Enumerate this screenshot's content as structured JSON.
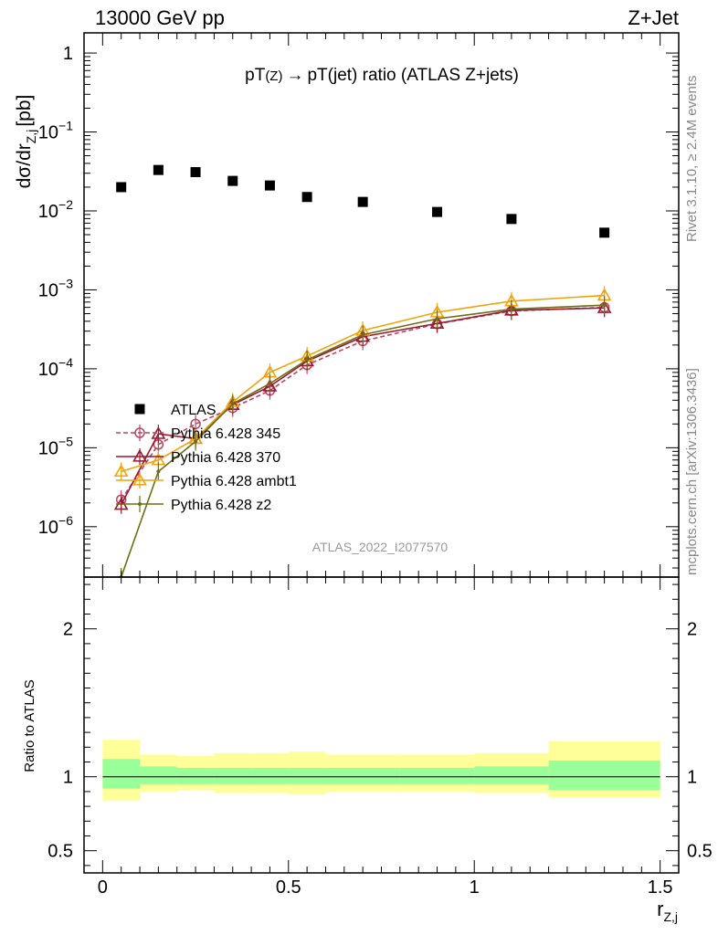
{
  "header": {
    "energy": "13000 GeV pp",
    "process": "Z+Jet"
  },
  "side_labels": {
    "rivet": "Rivet 3.1.10, ≥ 2.4M events",
    "mcplots": "mcplots.cern.ch [arXiv:1306.3436]"
  },
  "analysis_id": "ATLAS_2022_I2077570",
  "colors": {
    "data": "#000000",
    "p345": "#b5475f",
    "p370": "#9b1730",
    "ambt1": "#f0a30a",
    "z2": "#6e6e14",
    "band_inner": "#99ff99",
    "band_outer": "#ffff99"
  },
  "chart_data": [
    {
      "type": "scatter",
      "panel": "main",
      "title_main": "pT",
      "title_sub1": "(Z)",
      "title_arrow": "→",
      "title_rest": "pT(jet) ratio (ATLAS Z+jets)",
      "ylabel_main": "dσ/dr",
      "ylabel_sub": "Z,j",
      "ylabel_unit": "[pb]",
      "yscale": "log",
      "ylim": [
        2.3e-07,
        1.8
      ],
      "xlim": [
        -0.05,
        1.55
      ],
      "ytick_labels": [
        {
          "base": "10",
          "exp": "−6",
          "value": 1e-06
        },
        {
          "base": "10",
          "exp": "−5",
          "value": 1e-05
        },
        {
          "base": "10",
          "exp": "−4",
          "value": 0.0001
        },
        {
          "base": "10",
          "exp": "−3",
          "value": 0.001
        },
        {
          "base": "10",
          "exp": "−2",
          "value": 0.01
        },
        {
          "base": "10",
          "exp": "−1",
          "value": 0.1
        },
        {
          "base": "1",
          "exp": "",
          "value": 1
        }
      ],
      "legend_placement": "lower-left",
      "series": [
        {
          "name": "ATLAS",
          "key": "data",
          "marker": "filled-square",
          "x": [
            0.05,
            0.15,
            0.25,
            0.35,
            0.45,
            0.55,
            0.7,
            0.9,
            1.1,
            1.35
          ],
          "y": [
            0.02,
            0.033,
            0.031,
            0.024,
            0.021,
            0.015,
            0.013,
            0.0097,
            0.0079,
            0.0053
          ]
        },
        {
          "name": "Pythia 6.428 345",
          "key": "p345",
          "marker": "open-circle",
          "dashed": true,
          "x": [
            0.05,
            0.15,
            0.25,
            0.35,
            0.45,
            0.55,
            0.7,
            0.9,
            1.1,
            1.35
          ],
          "y": [
            2.2e-06,
            1.1e-05,
            2e-05,
            3.2e-05,
            5.3e-05,
            0.000112,
            0.000225,
            0.00037,
            0.00054,
            0.0006
          ]
        },
        {
          "name": "Pythia 6.428 370",
          "key": "p370",
          "marker": "open-triangle",
          "x": [
            0.05,
            0.15,
            0.25,
            0.35,
            0.45,
            0.55,
            0.7,
            0.9,
            1.1,
            1.35
          ],
          "y": [
            1.9e-06,
            1.5e-05,
            1.3e-05,
            3.5e-05,
            6e-05,
            0.000125,
            0.000255,
            0.000375,
            0.00055,
            0.00059
          ]
        },
        {
          "name": "Pythia 6.428 ambt1",
          "key": "ambt1",
          "marker": "open-triangle",
          "x": [
            0.05,
            0.15,
            0.25,
            0.35,
            0.45,
            0.55,
            0.7,
            0.9,
            1.1,
            1.35
          ],
          "y": [
            5e-06,
            7e-06,
            1.3e-05,
            3.8e-05,
            9e-05,
            0.000145,
            0.000305,
            0.00052,
            0.00072,
            0.00085
          ]
        },
        {
          "name": "Pythia 6.428 z2",
          "key": "z2",
          "marker": "dot",
          "x": [
            0.05,
            0.15,
            0.25,
            0.35,
            0.45,
            0.55,
            0.7,
            0.9,
            1.1,
            1.35
          ],
          "y": [
            2.3e-07,
            5e-06,
            1.2e-05,
            3.6e-05,
            6.5e-05,
            0.00013,
            0.00027,
            0.00043,
            0.00057,
            0.00064
          ]
        }
      ]
    },
    {
      "type": "area",
      "panel": "ratio",
      "ylabel": "Ratio to ATLAS",
      "xlabel_main": "r",
      "xlabel_sub": "Z,j",
      "ylim": [
        0.35,
        2.35
      ],
      "xlim": [
        -0.05,
        1.55
      ],
      "ytick_labels": [
        "0.5",
        "1",
        "2"
      ],
      "ytick_values": [
        0.5,
        1,
        2
      ],
      "xtick_labels": [
        "0",
        "0.5",
        "1",
        "1.5"
      ],
      "xtick_values": [
        0,
        0.5,
        1,
        1.5
      ],
      "bins": [
        {
          "lo": 0.0,
          "hi": 0.1,
          "inner": [
            0.92,
            1.12
          ],
          "outer": [
            0.84,
            1.25
          ]
        },
        {
          "lo": 0.1,
          "hi": 0.2,
          "inner": [
            0.95,
            1.07
          ],
          "outer": [
            0.9,
            1.15
          ]
        },
        {
          "lo": 0.2,
          "hi": 0.3,
          "inner": [
            0.95,
            1.06
          ],
          "outer": [
            0.91,
            1.14
          ]
        },
        {
          "lo": 0.3,
          "hi": 0.4,
          "inner": [
            0.95,
            1.06
          ],
          "outer": [
            0.89,
            1.16
          ]
        },
        {
          "lo": 0.4,
          "hi": 0.5,
          "inner": [
            0.95,
            1.06
          ],
          "outer": [
            0.89,
            1.16
          ]
        },
        {
          "lo": 0.5,
          "hi": 0.6,
          "inner": [
            0.95,
            1.06
          ],
          "outer": [
            0.88,
            1.17
          ]
        },
        {
          "lo": 0.6,
          "hi": 0.8,
          "inner": [
            0.95,
            1.06
          ],
          "outer": [
            0.9,
            1.15
          ]
        },
        {
          "lo": 0.8,
          "hi": 1.0,
          "inner": [
            0.95,
            1.06
          ],
          "outer": [
            0.9,
            1.15
          ]
        },
        {
          "lo": 1.0,
          "hi": 1.2,
          "inner": [
            0.95,
            1.07
          ],
          "outer": [
            0.89,
            1.16
          ]
        },
        {
          "lo": 1.2,
          "hi": 1.5,
          "inner": [
            0.91,
            1.11
          ],
          "outer": [
            0.86,
            1.24
          ]
        }
      ]
    }
  ]
}
